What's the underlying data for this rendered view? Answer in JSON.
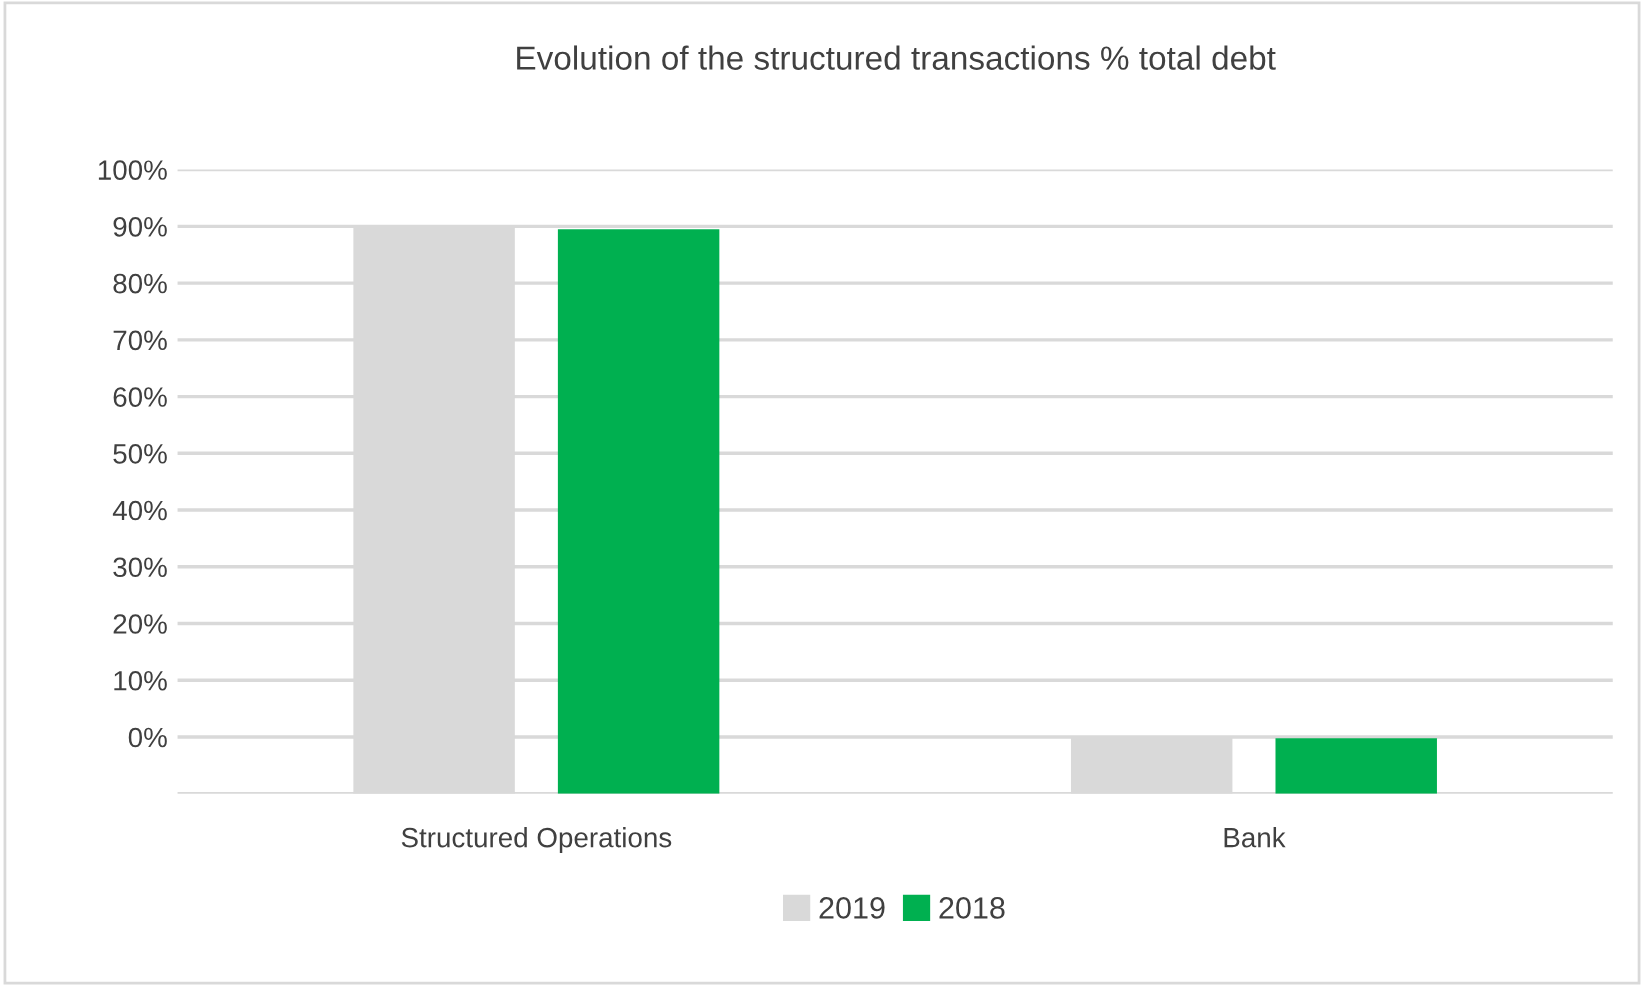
{
  "chart_data": {
    "type": "bar",
    "title": "Evolution of the structured transactions % total debt",
    "categories": [
      "Structured Operations",
      "Bank"
    ],
    "series": [
      {
        "name": "2019",
        "color": "#d9d9d9",
        "values": [
          100,
          10
        ],
        "base": [
          -10,
          -10
        ]
      },
      {
        "name": "2018",
        "color": "#00b050",
        "values": [
          99.5,
          9.8
        ],
        "base": [
          -10,
          -10
        ]
      }
    ],
    "ylim": [
      -10,
      100
    ],
    "yticks": [
      {
        "value": -10,
        "label": null
      },
      {
        "value": 0,
        "label": "0%"
      },
      {
        "value": 10,
        "label": "10%"
      },
      {
        "value": 20,
        "label": "20%"
      },
      {
        "value": 30,
        "label": "30%"
      },
      {
        "value": 40,
        "label": "40%"
      },
      {
        "value": 50,
        "label": "50%"
      },
      {
        "value": 60,
        "label": "60%"
      },
      {
        "value": 70,
        "label": "70%"
      },
      {
        "value": 80,
        "label": "80%"
      },
      {
        "value": 90,
        "label": "90%"
      },
      {
        "value": 100,
        "label": "100%"
      }
    ],
    "grid": "y",
    "legend": "bottom"
  }
}
